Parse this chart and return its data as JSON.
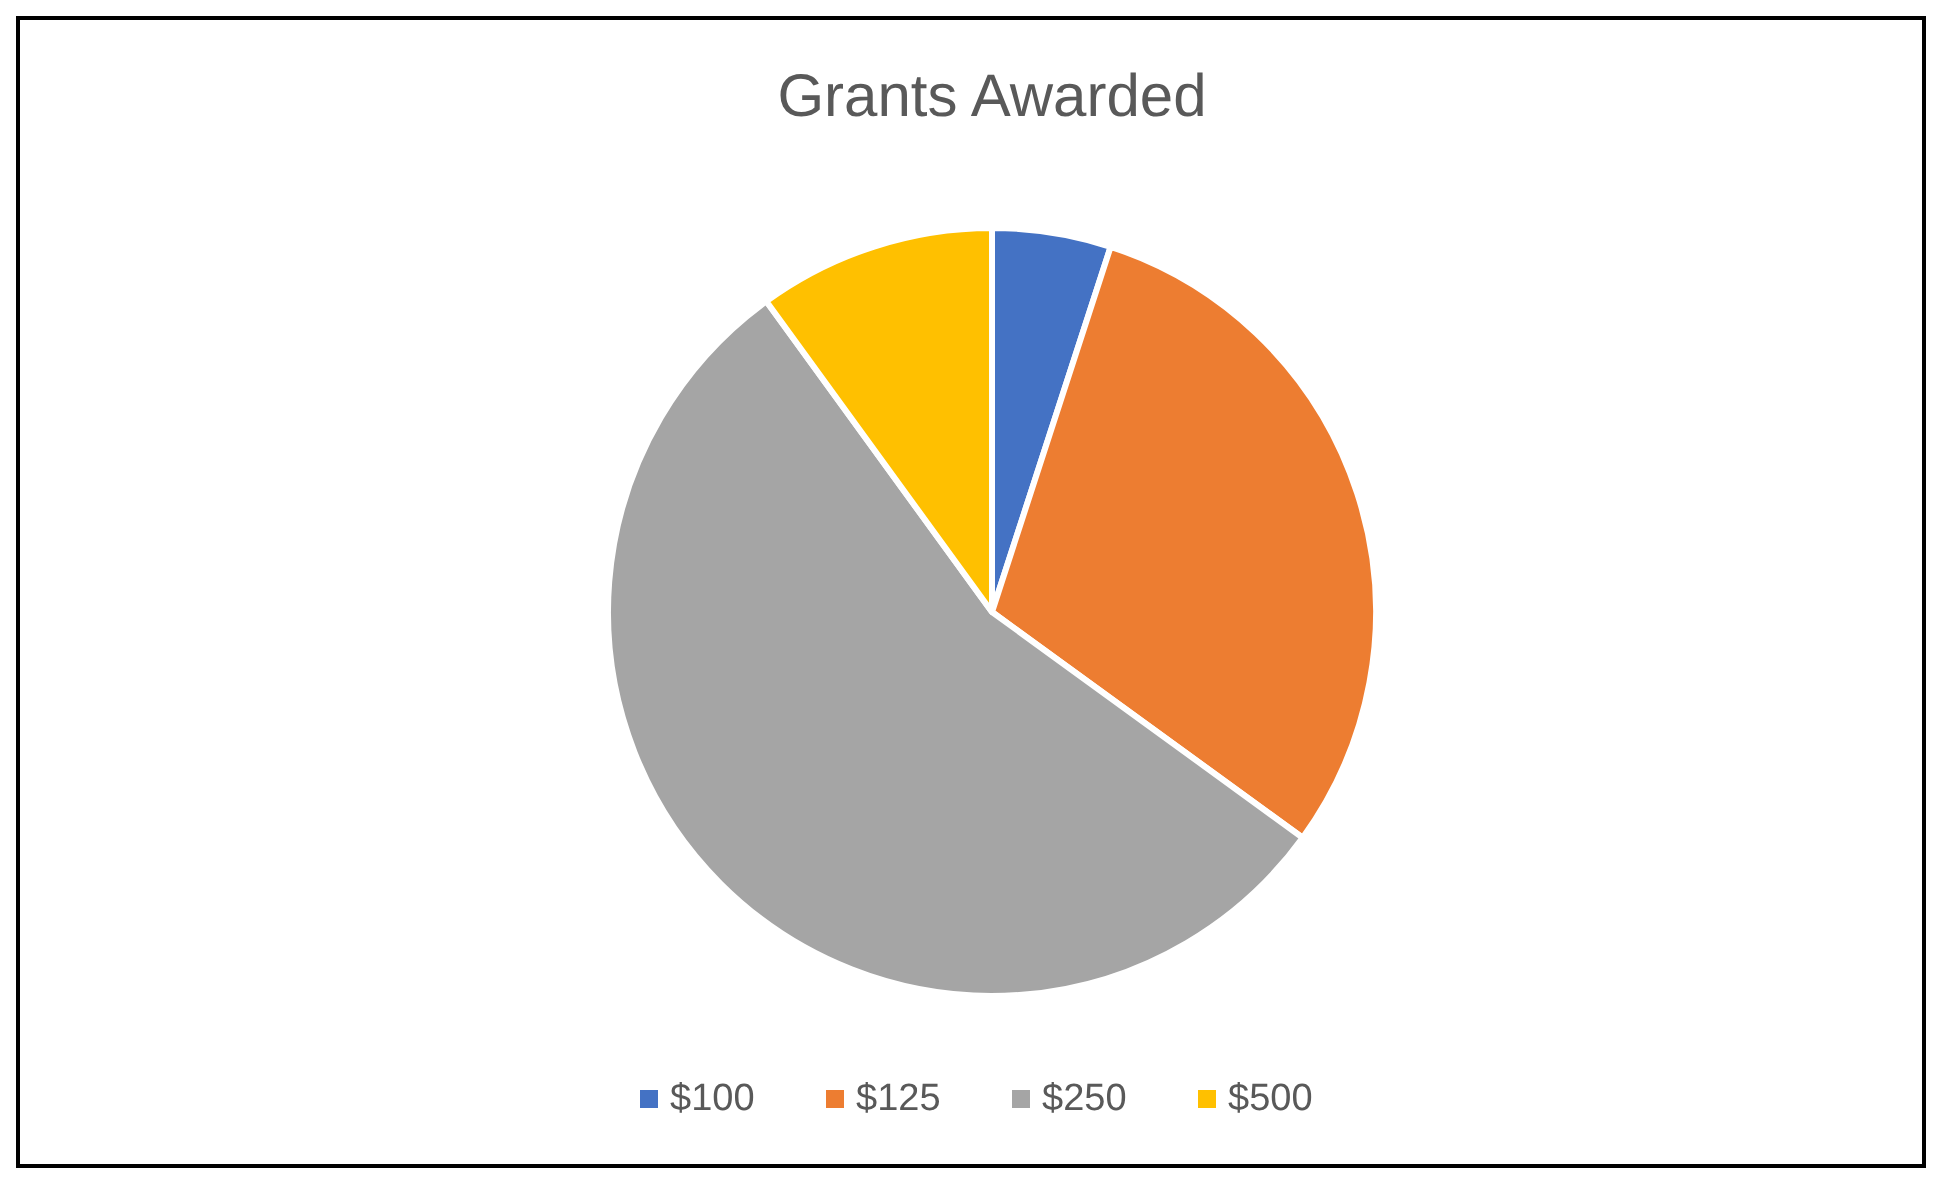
{
  "chart_data": {
    "type": "pie",
    "title": "Grants Awarded",
    "categories": [
      "$100",
      "$125",
      "$250",
      "$500"
    ],
    "values": [
      5,
      30,
      55,
      10
    ],
    "colors": [
      "#4472c4",
      "#ed7d31",
      "#a5a5a5",
      "#ffc000"
    ],
    "legend": "bottom"
  }
}
